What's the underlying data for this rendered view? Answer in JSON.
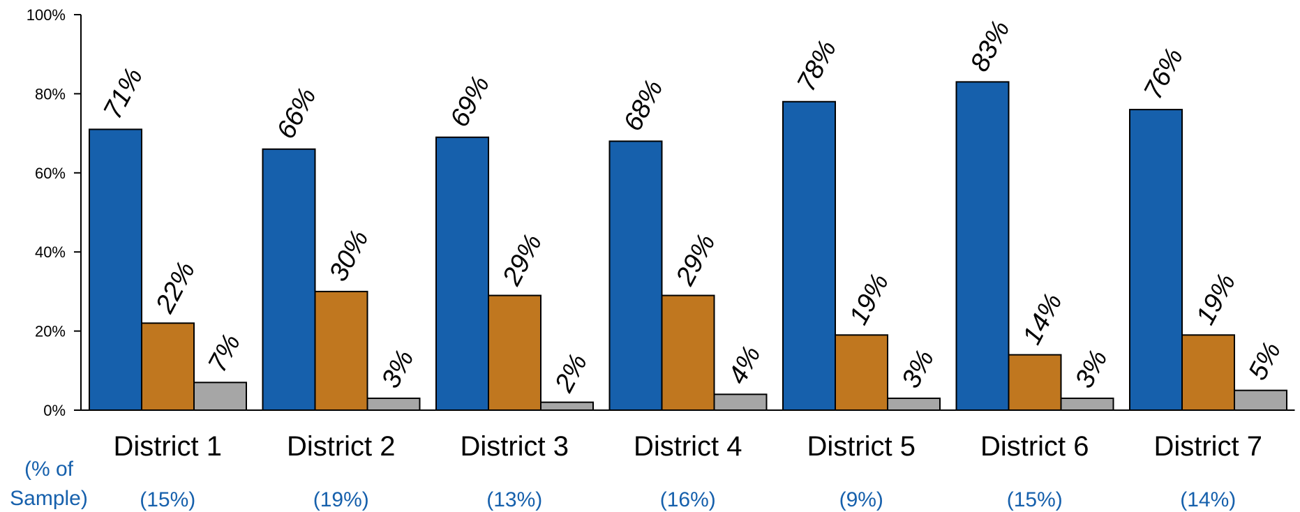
{
  "chart_data": {
    "type": "bar",
    "title": "",
    "xlabel": "",
    "ylabel": "",
    "ylim": [
      0,
      100
    ],
    "yticks": [
      "0%",
      "20%",
      "40%",
      "60%",
      "80%",
      "100%"
    ],
    "grid": false,
    "legend": "none",
    "categories": [
      "District 1",
      "District 2",
      "District 3",
      "District 4",
      "District 5",
      "District 6",
      "District 7"
    ],
    "series": [
      {
        "color": "#1660ac",
        "values": [
          71,
          66,
          69,
          68,
          78,
          83,
          76
        ],
        "labels": [
          "71%",
          "66%",
          "69%",
          "68%",
          "78%",
          "83%",
          "76%"
        ]
      },
      {
        "color": "#c0771f",
        "values": [
          22,
          30,
          29,
          29,
          19,
          14,
          19
        ],
        "labels": [
          "22%",
          "30%",
          "29%",
          "29%",
          "19%",
          "14%",
          "19%"
        ]
      },
      {
        "color": "#a6a6a6",
        "values": [
          7,
          3,
          2,
          4,
          3,
          3,
          5
        ],
        "labels": [
          "7%",
          "3%",
          "2%",
          "4%",
          "3%",
          "3%",
          "5%"
        ]
      }
    ],
    "sample": {
      "header_line1": "(% of",
      "header_line2": "Sample)",
      "values": [
        "(15%)",
        "(19%)",
        "(13%)",
        "(16%)",
        "(9%)",
        "(15%)",
        "(14%)"
      ],
      "color": "#1660ac"
    }
  }
}
